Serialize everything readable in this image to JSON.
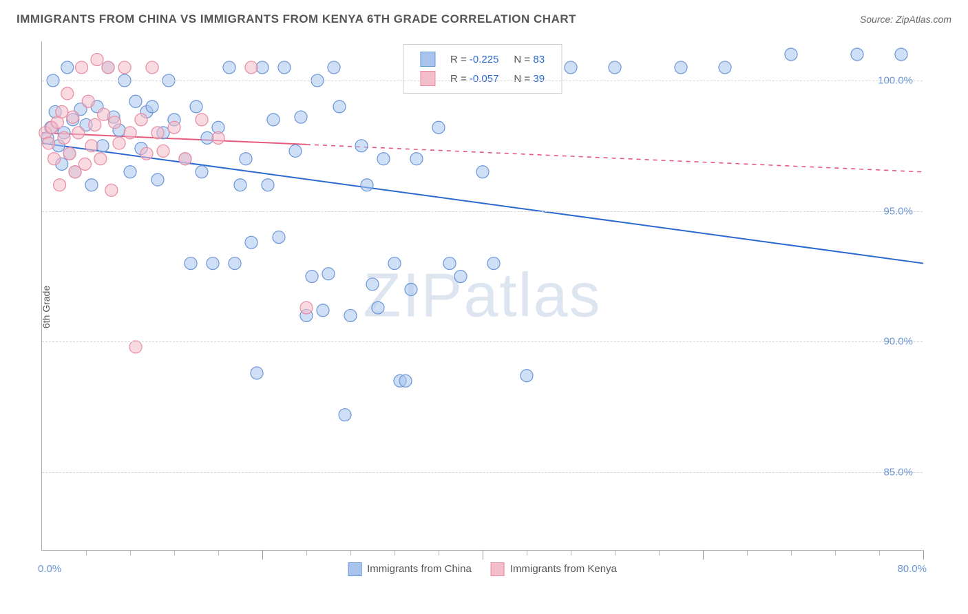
{
  "title": "IMMIGRANTS FROM CHINA VS IMMIGRANTS FROM KENYA 6TH GRADE CORRELATION CHART",
  "source": "Source: ZipAtlas.com",
  "ylabel": "6th Grade",
  "watermark_a": "ZIP",
  "watermark_b": "atlas",
  "chart": {
    "type": "scatter",
    "background_color": "#ffffff",
    "grid_color": "#d5d5d5",
    "axis_color": "#aaaaaa",
    "tick_label_color": "#6b95d4",
    "xlim": [
      0,
      80
    ],
    "ylim": [
      82,
      101.5
    ],
    "xtick_labels": [
      "0.0%",
      "80.0%"
    ],
    "ytick_values": [
      85,
      90,
      95,
      100
    ],
    "ytick_labels": [
      "85.0%",
      "90.0%",
      "95.0%",
      "100.0%"
    ],
    "minor_x_step": 4,
    "major_x_step": 20,
    "marker_radius": 9,
    "marker_opacity": 0.55,
    "line_width": 2,
    "series": [
      {
        "name": "Immigrants from China",
        "fill": "#a8c4ec",
        "stroke": "#6a95d6",
        "line_color": "#2a6ad0",
        "R": "-0.225",
        "N": "83",
        "regression": {
          "x1": 0,
          "y1": 97.6,
          "x2": 80,
          "y2": 93.0,
          "dash": "none"
        },
        "regression_extent_x": 80,
        "points": [
          [
            0.5,
            97.8
          ],
          [
            0.8,
            98.2
          ],
          [
            1.0,
            100.0
          ],
          [
            1.2,
            98.8
          ],
          [
            1.5,
            97.5
          ],
          [
            1.8,
            96.8
          ],
          [
            2.0,
            98.0
          ],
          [
            2.3,
            100.5
          ],
          [
            2.5,
            97.2
          ],
          [
            2.8,
            98.5
          ],
          [
            3.0,
            96.5
          ],
          [
            3.5,
            98.9
          ],
          [
            4.0,
            98.3
          ],
          [
            4.5,
            96.0
          ],
          [
            5.0,
            99.0
          ],
          [
            5.5,
            97.5
          ],
          [
            6.0,
            100.5
          ],
          [
            6.5,
            98.6
          ],
          [
            7.0,
            98.1
          ],
          [
            7.5,
            100.0
          ],
          [
            8.0,
            96.5
          ],
          [
            8.5,
            99.2
          ],
          [
            9.0,
            97.4
          ],
          [
            9.5,
            98.8
          ],
          [
            10.0,
            99.0
          ],
          [
            10.5,
            96.2
          ],
          [
            11.0,
            98.0
          ],
          [
            11.5,
            100.0
          ],
          [
            12.0,
            98.5
          ],
          [
            13.0,
            97.0
          ],
          [
            13.5,
            93.0
          ],
          [
            14.0,
            99.0
          ],
          [
            14.5,
            96.5
          ],
          [
            15.0,
            97.8
          ],
          [
            15.5,
            93.0
          ],
          [
            16.0,
            98.2
          ],
          [
            17.0,
            100.5
          ],
          [
            17.5,
            93.0
          ],
          [
            18.0,
            96.0
          ],
          [
            18.5,
            97.0
          ],
          [
            19.0,
            93.8
          ],
          [
            19.5,
            88.8
          ],
          [
            20.0,
            100.5
          ],
          [
            20.5,
            96.0
          ],
          [
            21.0,
            98.5
          ],
          [
            21.5,
            94.0
          ],
          [
            22.0,
            100.5
          ],
          [
            23.0,
            97.3
          ],
          [
            23.5,
            98.6
          ],
          [
            24.0,
            91.0
          ],
          [
            24.5,
            92.5
          ],
          [
            25.0,
            100.0
          ],
          [
            25.5,
            91.2
          ],
          [
            26.0,
            92.6
          ],
          [
            26.5,
            100.5
          ],
          [
            27.0,
            99.0
          ],
          [
            27.5,
            87.2
          ],
          [
            28.0,
            91.0
          ],
          [
            29.0,
            97.5
          ],
          [
            29.5,
            96.0
          ],
          [
            30.0,
            92.2
          ],
          [
            30.5,
            91.3
          ],
          [
            31.0,
            97.0
          ],
          [
            32.0,
            93.0
          ],
          [
            32.5,
            88.5
          ],
          [
            33.0,
            88.5
          ],
          [
            33.5,
            92.0
          ],
          [
            34.0,
            97.0
          ],
          [
            35.0,
            100.5
          ],
          [
            36.0,
            98.2
          ],
          [
            37.0,
            93.0
          ],
          [
            38.0,
            92.5
          ],
          [
            40.0,
            96.5
          ],
          [
            41.0,
            93.0
          ],
          [
            42.0,
            100.5
          ],
          [
            44.0,
            88.7
          ],
          [
            48.0,
            100.5
          ],
          [
            52.0,
            100.5
          ],
          [
            58.0,
            100.5
          ],
          [
            62.0,
            100.5
          ],
          [
            68.0,
            101.0
          ],
          [
            74.0,
            101.0
          ],
          [
            78.0,
            101.0
          ]
        ]
      },
      {
        "name": "Immigrants from Kenya",
        "fill": "#f5bcc9",
        "stroke": "#e88aa2",
        "line_color": "#e55a7d",
        "R": "-0.057",
        "N": "39",
        "regression": {
          "x1": 0,
          "y1": 98.0,
          "x2": 80,
          "y2": 96.5,
          "dash": "6,6"
        },
        "regression_extent_x": 24,
        "points": [
          [
            0.3,
            98.0
          ],
          [
            0.6,
            97.6
          ],
          [
            0.9,
            98.2
          ],
          [
            1.1,
            97.0
          ],
          [
            1.4,
            98.4
          ],
          [
            1.6,
            96.0
          ],
          [
            1.8,
            98.8
          ],
          [
            2.0,
            97.8
          ],
          [
            2.3,
            99.5
          ],
          [
            2.5,
            97.2
          ],
          [
            2.8,
            98.6
          ],
          [
            3.0,
            96.5
          ],
          [
            3.3,
            98.0
          ],
          [
            3.6,
            100.5
          ],
          [
            3.9,
            96.8
          ],
          [
            4.2,
            99.2
          ],
          [
            4.5,
            97.5
          ],
          [
            4.8,
            98.3
          ],
          [
            5.0,
            100.8
          ],
          [
            5.3,
            97.0
          ],
          [
            5.6,
            98.7
          ],
          [
            6.0,
            100.5
          ],
          [
            6.3,
            95.8
          ],
          [
            6.6,
            98.4
          ],
          [
            7.0,
            97.6
          ],
          [
            7.5,
            100.5
          ],
          [
            8.0,
            98.0
          ],
          [
            8.5,
            89.8
          ],
          [
            9.0,
            98.5
          ],
          [
            9.5,
            97.2
          ],
          [
            10.0,
            100.5
          ],
          [
            10.5,
            98.0
          ],
          [
            11.0,
            97.3
          ],
          [
            12.0,
            98.2
          ],
          [
            13.0,
            97.0
          ],
          [
            14.5,
            98.5
          ],
          [
            16.0,
            97.8
          ],
          [
            19.0,
            100.5
          ],
          [
            24.0,
            91.3
          ]
        ]
      }
    ]
  },
  "legend_bottom": [
    {
      "label": "Immigrants from China",
      "fill": "#a8c4ec",
      "stroke": "#6a95d6"
    },
    {
      "label": "Immigrants from Kenya",
      "fill": "#f5bcc9",
      "stroke": "#e88aa2"
    }
  ]
}
